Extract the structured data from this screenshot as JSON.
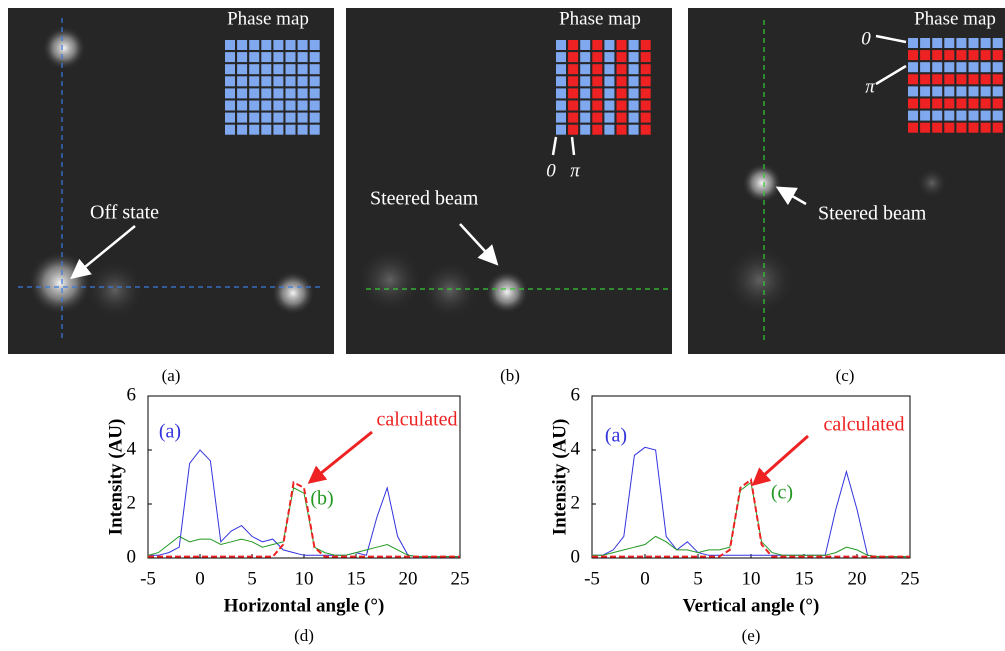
{
  "panels": [
    {
      "caption": "(a)",
      "title": "Phase map",
      "annotation": "Off state"
    },
    {
      "caption": "(b)",
      "title": "Phase map",
      "annotation": "Steered beam",
      "phase_labels": [
        "0",
        "π"
      ]
    },
    {
      "caption": "(c)",
      "title": "Phase map",
      "annotation": "Steered beam",
      "phase_labels": [
        "0",
        "π"
      ]
    }
  ],
  "chart_data": [
    {
      "type": "line",
      "caption": "(d)",
      "xlabel": "Horizontal angle (°)",
      "ylabel": "Intensity (AU)",
      "x": [
        -5,
        -4,
        -3,
        -2,
        -1,
        0,
        1,
        2,
        3,
        4,
        5,
        6,
        7,
        8,
        9,
        10,
        11,
        12,
        13,
        14,
        15,
        16,
        17,
        18,
        19,
        20,
        21,
        22,
        23,
        24,
        25
      ],
      "series": [
        {
          "name": "(a)",
          "color": "#3333dd",
          "dashed": false,
          "values": [
            0.1,
            0.1,
            0.2,
            0.4,
            3.5,
            4.0,
            3.6,
            0.6,
            1.0,
            1.2,
            0.8,
            0.6,
            0.7,
            0.3,
            0.2,
            0.1,
            0.1,
            0.1,
            0.1,
            0.1,
            0.2,
            0.1,
            1.5,
            2.6,
            0.8,
            0.1,
            0.05,
            0.05,
            0.05,
            0.05,
            0.05
          ]
        },
        {
          "name": "(b)",
          "color": "#229922",
          "dashed": false,
          "values": [
            0.1,
            0.2,
            0.5,
            0.8,
            0.6,
            0.7,
            0.7,
            0.5,
            0.6,
            0.7,
            0.6,
            0.4,
            0.5,
            0.6,
            2.6,
            2.4,
            0.4,
            0.2,
            0.1,
            0.1,
            0.2,
            0.3,
            0.4,
            0.5,
            0.3,
            0.1,
            0.05,
            0.05,
            0.05,
            0.05,
            0.05
          ]
        },
        {
          "name": "calculated",
          "color": "#ee2222",
          "dashed": true,
          "values": [
            0.05,
            0.05,
            0.05,
            0.05,
            0.05,
            0.05,
            0.05,
            0.05,
            0.05,
            0.05,
            0.05,
            0.05,
            0.05,
            0.5,
            2.8,
            2.6,
            0.4,
            0.05,
            0.05,
            0.05,
            0.05,
            0.05,
            0.05,
            0.05,
            0.05,
            0.05,
            0.05,
            0.05,
            0.05,
            0.05,
            0.05
          ]
        }
      ],
      "xlim": [
        -5,
        25
      ],
      "ylim": [
        0,
        6
      ],
      "xticks": [
        -5,
        0,
        5,
        10,
        15,
        20,
        25
      ],
      "yticks": [
        0,
        2,
        4,
        6
      ]
    },
    {
      "type": "line",
      "caption": "(e)",
      "xlabel": "Vertical angle (°)",
      "ylabel": "Intensity (AU)",
      "x": [
        -5,
        -4,
        -3,
        -2,
        -1,
        0,
        1,
        2,
        3,
        4,
        5,
        6,
        7,
        8,
        9,
        10,
        11,
        12,
        13,
        14,
        15,
        16,
        17,
        18,
        19,
        20,
        21,
        22,
        23,
        24,
        25
      ],
      "series": [
        {
          "name": "(a)",
          "color": "#3333dd",
          "dashed": false,
          "values": [
            0.1,
            0.1,
            0.3,
            0.8,
            3.8,
            4.1,
            4.0,
            0.8,
            0.3,
            0.6,
            0.2,
            0.1,
            0.1,
            0.1,
            0.1,
            0.1,
            0.1,
            0.1,
            0.1,
            0.1,
            0.1,
            0.1,
            0.1,
            1.8,
            3.2,
            1.8,
            0.1,
            0.05,
            0.05,
            0.05,
            0.05
          ]
        },
        {
          "name": "(c)",
          "color": "#229922",
          "dashed": false,
          "values": [
            0.1,
            0.1,
            0.2,
            0.3,
            0.4,
            0.5,
            0.8,
            0.6,
            0.3,
            0.3,
            0.2,
            0.3,
            0.3,
            0.4,
            2.5,
            2.8,
            0.6,
            0.2,
            0.1,
            0.1,
            0.1,
            0.1,
            0.1,
            0.2,
            0.4,
            0.3,
            0.1,
            0.05,
            0.05,
            0.05,
            0.05
          ]
        },
        {
          "name": "calculated",
          "color": "#ee2222",
          "dashed": true,
          "values": [
            0.05,
            0.05,
            0.05,
            0.05,
            0.05,
            0.05,
            0.05,
            0.05,
            0.05,
            0.05,
            0.05,
            0.05,
            0.05,
            0.3,
            2.6,
            2.9,
            0.5,
            0.05,
            0.05,
            0.05,
            0.05,
            0.05,
            0.05,
            0.05,
            0.05,
            0.05,
            0.05,
            0.05,
            0.05,
            0.05,
            0.05
          ]
        }
      ],
      "xlim": [
        -5,
        25
      ],
      "ylim": [
        0,
        6
      ],
      "xticks": [
        -5,
        0,
        5,
        10,
        15,
        20,
        25
      ],
      "yticks": [
        0,
        2,
        4,
        6
      ]
    }
  ]
}
